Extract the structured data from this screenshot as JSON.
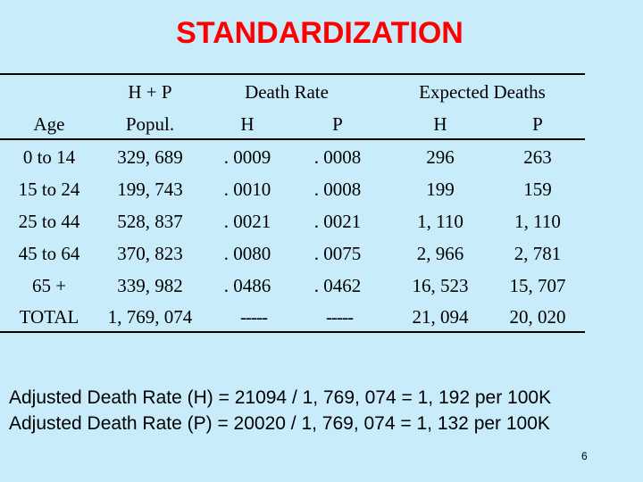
{
  "slide": {
    "title": "STANDARDIZATION",
    "page_number": "6"
  },
  "table": {
    "header_top": {
      "hp": "H + P",
      "death_rate": "Death  Rate",
      "expected_deaths": "Expected  Deaths"
    },
    "header_sub": [
      "Age",
      "Popul.",
      "H",
      "P",
      "H",
      "P"
    ],
    "rows": [
      [
        "0 to 14",
        "329, 689",
        ". 0009",
        ". 0008",
        "296",
        "263"
      ],
      [
        "15 to 24",
        "199, 743",
        ". 0010",
        ". 0008",
        "199",
        "159"
      ],
      [
        "25 to 44",
        "528, 837",
        ". 0021",
        ". 0021",
        "1, 110",
        "1, 110"
      ],
      [
        "45 to 64",
        "370, 823",
        ". 0080",
        ". 0075",
        "2, 966",
        "2, 781"
      ],
      [
        "65 +",
        "339, 982",
        ". 0486",
        ". 0462",
        "16, 523",
        "15, 707"
      ],
      [
        "TOTAL",
        "1, 769, 074",
        "-----",
        "-----",
        "21, 094",
        "20, 020"
      ]
    ]
  },
  "formulas": {
    "line1": "Adjusted Death Rate (H) = 21094 / 1, 769, 074 = 1, 192 per 100K",
    "line2": "Adjusted Death Rate (P) = 20020 / 1, 769, 074 = 1, 132 per 100K"
  }
}
